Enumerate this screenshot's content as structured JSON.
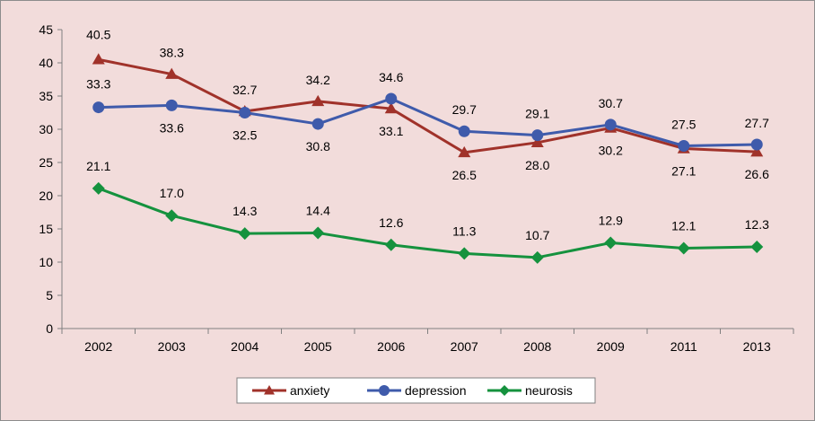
{
  "chart_data": {
    "type": "line",
    "title": "",
    "xlabel": "",
    "ylabel": "",
    "categories": [
      "2002",
      "2003",
      "2004",
      "2005",
      "2006",
      "2007",
      "2008",
      "2009",
      "2011",
      "2013"
    ],
    "ylim": [
      0,
      45
    ],
    "yticks": [
      0,
      5,
      10,
      15,
      20,
      25,
      30,
      35,
      40,
      45
    ],
    "grid": false,
    "legend_position": "bottom",
    "series": [
      {
        "name": "anxiety",
        "color": "#a0322a",
        "marker": "triangle",
        "values": [
          40.5,
          38.3,
          32.7,
          34.2,
          33.1,
          26.5,
          28.0,
          30.2,
          27.1,
          26.6
        ],
        "labels": [
          "40.5",
          "38.3",
          "32.7",
          "34.2",
          "33.1",
          "26.5",
          "28.0",
          "30.2",
          "27.1",
          "26.6"
        ]
      },
      {
        "name": "depression",
        "color": "#3f5bab",
        "marker": "circle",
        "values": [
          33.3,
          33.6,
          32.5,
          30.8,
          34.6,
          29.7,
          29.1,
          30.7,
          27.5,
          27.7
        ],
        "labels": [
          "33.3",
          "33.6",
          "32.5",
          "30.8",
          "34.6",
          "29.7",
          "29.1",
          "30.7",
          "27.5",
          "27.7"
        ]
      },
      {
        "name": "neurosis",
        "color": "#15923e",
        "marker": "diamond",
        "values": [
          21.1,
          17.0,
          14.3,
          14.4,
          12.6,
          11.3,
          10.7,
          12.9,
          12.1,
          12.3
        ],
        "labels": [
          "21.1",
          "17.0",
          "14.3",
          "14.4",
          "12.6",
          "11.3",
          "10.7",
          "12.9",
          "12.1",
          "12.3"
        ]
      }
    ]
  }
}
